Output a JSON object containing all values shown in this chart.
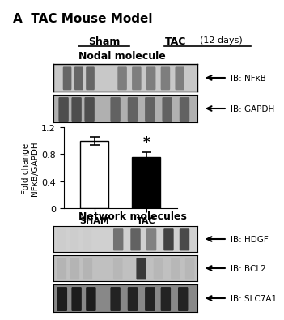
{
  "title": "A  TAC Mouse Model",
  "sham_label": "Sham",
  "tac_label": "TAC",
  "tac_days": "(12 days)",
  "nodal_label": "Nodal molecule",
  "network_label": "Network molecules",
  "bar_categories": [
    "SHAM",
    "TAC"
  ],
  "bar_values": [
    1.0,
    0.76
  ],
  "bar_errors": [
    0.06,
    0.07
  ],
  "bar_colors": [
    "white",
    "black"
  ],
  "ylabel": "Fold change\nNFκB/GAPDH",
  "ylim": [
    0,
    1.2
  ],
  "yticks": [
    0,
    0.4,
    0.8,
    1.2
  ],
  "ib_nfkb": "IB: NFκB",
  "ib_gapdh": "IB: GAPDH",
  "ib_hdgf": "IB: HDGF",
  "ib_bcl2": "IB: BCL2",
  "ib_slc7a1": "IB: SLC7A1",
  "star_label": "*",
  "bg_color": "white",
  "blot_bg_nfkb": "#c8c8c8",
  "blot_bg_gapdh": "#b0b0b0",
  "blot_bg_hdgf": "#d0d0d0",
  "blot_bg_bcl2": "#c0c0c0",
  "blot_bg_slc7a1": "#888888"
}
